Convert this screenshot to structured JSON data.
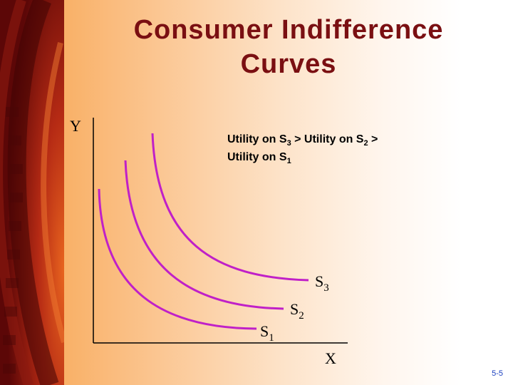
{
  "title": {
    "line1": "Consumer Indifference",
    "line2": "Curves"
  },
  "axes": {
    "y_label": "Y",
    "x_label": "X"
  },
  "note": {
    "line1_prefix": "Utility on S",
    "line1_sub_a": "3",
    "line1_mid": " > Utility on S",
    "line1_sub_b": "2",
    "line1_suffix": " >",
    "line2_prefix": "Utility on S",
    "line2_sub": "1"
  },
  "curves": [
    {
      "letter": "S",
      "sub": "1"
    },
    {
      "letter": "S",
      "sub": "2"
    },
    {
      "letter": "S",
      "sub": "3"
    }
  ],
  "slide_number": "5-5",
  "colors": {
    "curve": "#c020c8",
    "title": "#7a0f12",
    "band": "#7a0c0c",
    "slide_number": "#1a3fbf"
  }
}
